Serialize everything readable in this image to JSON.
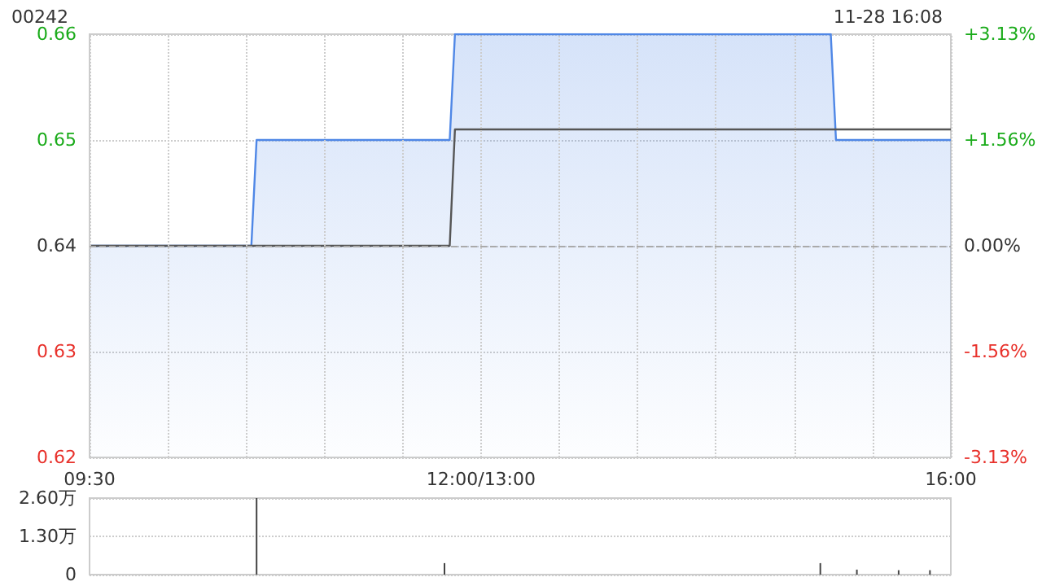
{
  "chart_data": [
    {
      "type": "area",
      "title": "00242",
      "annotations": [
        "11-28 16:08"
      ],
      "categories": [
        "09:30",
        null,
        null,
        null,
        null,
        null,
        null,
        null,
        null,
        null,
        null,
        null,
        null,
        null,
        null,
        null,
        null,
        null,
        null,
        null,
        null,
        null,
        null,
        null,
        null,
        null,
        null,
        null,
        null,
        null,
        null,
        null,
        null,
        null,
        null,
        null,
        null,
        null,
        null,
        null,
        null,
        null,
        null,
        null,
        null,
        null,
        null,
        null,
        null,
        null,
        null,
        null,
        null,
        null,
        null,
        null,
        null,
        null,
        null,
        null,
        null,
        null,
        null,
        null,
        null,
        null,
        null,
        null,
        null,
        null,
        null,
        null,
        null,
        null,
        null,
        "12:00/13:00",
        null,
        null,
        null,
        null,
        null,
        null,
        null,
        null,
        null,
        null,
        null,
        null,
        null,
        null,
        null,
        null,
        null,
        null,
        null,
        null,
        null,
        null,
        null,
        null,
        null,
        null,
        null,
        null,
        null,
        null,
        null,
        null,
        null,
        null,
        null,
        null,
        null,
        null,
        null,
        null,
        null,
        null,
        null,
        null,
        null,
        null,
        null,
        null,
        null,
        null,
        null,
        null,
        null,
        null,
        null,
        null,
        null,
        null,
        null,
        null,
        null,
        null,
        null,
        null,
        null,
        null,
        null,
        null,
        null,
        null,
        null,
        null,
        null,
        null,
        null,
        null,
        null,
        null,
        null,
        null,
        null,
        null,
        null,
        null,
        null,
        null,
        null,
        null,
        null,
        "16:00"
      ],
      "series": [
        {
          "color": "#4f87e6",
          "values": [
            0.64,
            0.64,
            0.64,
            0.64,
            0.64,
            0.64,
            0.64,
            0.64,
            0.64,
            0.64,
            0.64,
            0.64,
            0.64,
            0.64,
            0.64,
            0.64,
            0.64,
            0.64,
            0.64,
            0.64,
            0.64,
            0.64,
            0.64,
            0.64,
            0.64,
            0.64,
            0.64,
            0.64,
            0.64,
            0.64,
            0.64,
            0.64,
            0.65,
            0.65,
            0.65,
            0.65,
            0.65,
            0.65,
            0.65,
            0.65,
            0.65,
            0.65,
            0.65,
            0.65,
            0.65,
            0.65,
            0.65,
            0.65,
            0.65,
            0.65,
            0.65,
            0.65,
            0.65,
            0.65,
            0.65,
            0.65,
            0.65,
            0.65,
            0.65,
            0.65,
            0.65,
            0.65,
            0.65,
            0.65,
            0.65,
            0.65,
            0.65,
            0.65,
            0.65,
            0.65,
            0.66,
            0.66,
            0.66,
            0.66,
            0.66,
            0.66,
            0.66,
            0.66,
            0.66,
            0.66,
            0.66,
            0.66,
            0.66,
            0.66,
            0.66,
            0.66,
            0.66,
            0.66,
            0.66,
            0.66,
            0.66,
            0.66,
            0.66,
            0.66,
            0.66,
            0.66,
            0.66,
            0.66,
            0.66,
            0.66,
            0.66,
            0.66,
            0.66,
            0.66,
            0.66,
            0.66,
            0.66,
            0.66,
            0.66,
            0.66,
            0.66,
            0.66,
            0.66,
            0.66,
            0.66,
            0.66,
            0.66,
            0.66,
            0.66,
            0.66,
            0.66,
            0.66,
            0.66,
            0.66,
            0.66,
            0.66,
            0.66,
            0.66,
            0.66,
            0.66,
            0.66,
            0.66,
            0.66,
            0.66,
            0.66,
            0.66,
            0.66,
            0.66,
            0.66,
            0.66,
            0.66,
            0.66,
            0.66,
            0.65,
            0.65,
            0.65,
            0.65,
            0.65,
            0.65,
            0.65,
            0.65,
            0.65,
            0.65,
            0.65,
            0.65,
            0.65,
            0.65,
            0.65,
            0.65,
            0.65,
            0.65,
            0.65,
            0.65,
            0.65,
            0.65,
            0.65
          ]
        },
        {
          "type": "line",
          "color": "#555555",
          "values": [
            0.64,
            0.64,
            0.64,
            0.64,
            0.64,
            0.64,
            0.64,
            0.64,
            0.64,
            0.64,
            0.64,
            0.64,
            0.64,
            0.64,
            0.64,
            0.64,
            0.64,
            0.64,
            0.64,
            0.64,
            0.64,
            0.64,
            0.64,
            0.64,
            0.64,
            0.64,
            0.64,
            0.64,
            0.64,
            0.64,
            0.64,
            0.64,
            0.64,
            0.64,
            0.64,
            0.64,
            0.64,
            0.64,
            0.64,
            0.64,
            0.64,
            0.64,
            0.64,
            0.64,
            0.64,
            0.64,
            0.64,
            0.64,
            0.64,
            0.64,
            0.64,
            0.64,
            0.64,
            0.64,
            0.64,
            0.64,
            0.64,
            0.64,
            0.64,
            0.64,
            0.64,
            0.64,
            0.64,
            0.64,
            0.64,
            0.64,
            0.64,
            0.64,
            0.64,
            0.64,
            0.651,
            0.651,
            0.651,
            0.651,
            0.651,
            0.651,
            0.651,
            0.651,
            0.651,
            0.651,
            0.651,
            0.651,
            0.651,
            0.651,
            0.651,
            0.651,
            0.651,
            0.651,
            0.651,
            0.651,
            0.651,
            0.651,
            0.651,
            0.651,
            0.651,
            0.651,
            0.651,
            0.651,
            0.651,
            0.651,
            0.651,
            0.651,
            0.651,
            0.651,
            0.651,
            0.651,
            0.651,
            0.651,
            0.651,
            0.651,
            0.651,
            0.651,
            0.651,
            0.651,
            0.651,
            0.651,
            0.651,
            0.651,
            0.651,
            0.651,
            0.651,
            0.651,
            0.651,
            0.651,
            0.651,
            0.651,
            0.651,
            0.651,
            0.651,
            0.651,
            0.651,
            0.651,
            0.651,
            0.651,
            0.651,
            0.651,
            0.651,
            0.651,
            0.651,
            0.651,
            0.651,
            0.651,
            0.651,
            0.651,
            0.651,
            0.651,
            0.651,
            0.651,
            0.651,
            0.651,
            0.651,
            0.651,
            0.651,
            0.651,
            0.651,
            0.651,
            0.651,
            0.651,
            0.651,
            0.651,
            0.651,
            0.651,
            0.651,
            0.651,
            0.651,
            0.651
          ]
        }
      ],
      "ylim": [
        0.62,
        0.66
      ],
      "yticks": [
        0.62,
        0.63,
        0.64,
        0.65,
        0.66
      ],
      "y2lim": [
        -3.13,
        3.13
      ],
      "y2ticks": [
        {
          "value": -3.13,
          "label": "-3.13%"
        },
        {
          "value": -1.56,
          "label": "-1.56%"
        },
        {
          "value": 0,
          "label": "0.00%"
        },
        {
          "value": 1.56,
          "label": "+1.56%"
        },
        {
          "value": 3.13,
          "label": "+3.13%"
        }
      ],
      "ref_lines": [
        {
          "axis": "y",
          "value": 0.64,
          "color": "#aaaaaa",
          "line_style": "dashed"
        }
      ],
      "grid": true,
      "marker": "none"
    },
    {
      "type": "bar",
      "color": "#444444",
      "categories": [
        null,
        null,
        null,
        null,
        null,
        null,
        null,
        null,
        null,
        null,
        null,
        null,
        null,
        null,
        null,
        null,
        null,
        null,
        null,
        null,
        null,
        null,
        null,
        null,
        null,
        null,
        null,
        null,
        null,
        null,
        null,
        null,
        null,
        null,
        null,
        null,
        null,
        null,
        null,
        null,
        null,
        null,
        null,
        null,
        null,
        null,
        null,
        null,
        null,
        null,
        null,
        null,
        null,
        null,
        null,
        null,
        null,
        null,
        null,
        null,
        null,
        null,
        null,
        null,
        null,
        null,
        null,
        null,
        null,
        null,
        null,
        null,
        null,
        null,
        null,
        null,
        null,
        null,
        null,
        null,
        null,
        null,
        null,
        null,
        null,
        null,
        null,
        null,
        null,
        null,
        null,
        null,
        null,
        null,
        null,
        null,
        null,
        null,
        null,
        null,
        null,
        null,
        null,
        null,
        null,
        null,
        null,
        null,
        null,
        null,
        null,
        null,
        null,
        null,
        null,
        null,
        null,
        null,
        null,
        null,
        null,
        null,
        null,
        null,
        null,
        null,
        null,
        null,
        null,
        null,
        null,
        null,
        null,
        null,
        null,
        null,
        null,
        null,
        null,
        null,
        null,
        null,
        null,
        null,
        null,
        null,
        null,
        null,
        null,
        null,
        null,
        null,
        null,
        null,
        null,
        null,
        null,
        null,
        null,
        null,
        null,
        null,
        null,
        null,
        null,
        null
      ],
      "values": [
        null,
        null,
        null,
        null,
        null,
        null,
        null,
        null,
        null,
        null,
        null,
        null,
        null,
        null,
        null,
        null,
        null,
        null,
        null,
        null,
        null,
        null,
        null,
        null,
        null,
        null,
        null,
        null,
        null,
        null,
        null,
        null,
        2.6,
        null,
        null,
        null,
        null,
        null,
        null,
        null,
        null,
        null,
        null,
        null,
        null,
        null,
        null,
        null,
        null,
        null,
        null,
        null,
        null,
        null,
        null,
        null,
        null,
        null,
        null,
        null,
        null,
        null,
        null,
        null,
        null,
        null,
        null,
        null,
        0.39,
        null,
        null,
        null,
        null,
        null,
        null,
        null,
        null,
        null,
        null,
        null,
        null,
        null,
        null,
        null,
        null,
        null,
        null,
        null,
        null,
        null,
        null,
        null,
        null,
        null,
        null,
        null,
        null,
        null,
        null,
        null,
        null,
        null,
        null,
        null,
        null,
        null,
        null,
        null,
        null,
        null,
        null,
        null,
        null,
        null,
        null,
        null,
        null,
        null,
        null,
        null,
        null,
        null,
        null,
        null,
        null,
        null,
        null,
        null,
        null,
        null,
        null,
        null,
        null,
        null,
        null,
        null,
        null,
        null,
        null,
        null,
        0.39,
        null,
        null,
        null,
        null,
        null,
        null,
        0.17,
        null,
        null,
        null,
        null,
        null,
        null,
        null,
        0.15,
        null,
        null,
        null,
        null,
        null,
        0.15,
        null,
        null,
        null,
        null
      ],
      "ylim": [
        0,
        2.6
      ],
      "yticks": [
        0,
        {
          "value": 1.3,
          "label": "1.30万"
        },
        {
          "value": 2.6,
          "label": "2.60万"
        }
      ],
      "grid": "y",
      "tick_labels": "y"
    }
  ]
}
